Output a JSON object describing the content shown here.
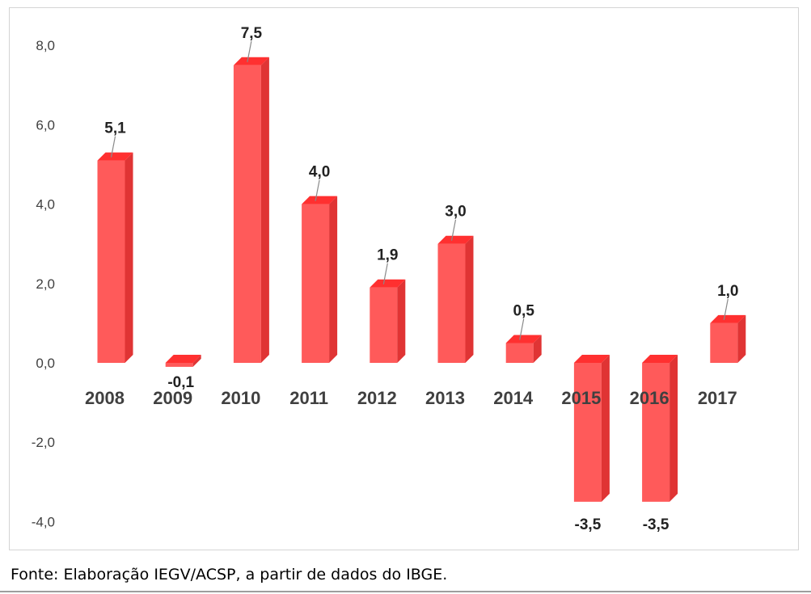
{
  "chart_data": {
    "type": "bar",
    "style": "3d-column",
    "title": "",
    "xlabel": "",
    "ylabel": "",
    "categories": [
      "2008",
      "2009",
      "2010",
      "2011",
      "2012",
      "2013",
      "2014",
      "2015",
      "2016",
      "2017"
    ],
    "values": [
      5.1,
      -0.1,
      7.5,
      4.0,
      1.9,
      3.0,
      0.5,
      -3.5,
      -3.5,
      1.0
    ],
    "data_labels": [
      "5,1",
      "-0,1",
      "7,5",
      "4,0",
      "1,9",
      "3,0",
      "0,5",
      "-3,5",
      "-3,5",
      "1,0"
    ],
    "y_ticks": [
      8,
      6,
      4,
      2,
      0,
      -2,
      -4
    ],
    "y_tick_labels": [
      "8,0",
      "6,0",
      "4,0",
      "2,0",
      "0,0",
      "-2,0",
      "-4,0"
    ],
    "ylim": [
      -4,
      8
    ],
    "grid": false,
    "legend": "none",
    "colors": {
      "bar_front": "#ff5a5a",
      "bar_side": "#e03434",
      "bar_top": "#ff3030",
      "tick_text": "#404040",
      "category_text": "#404040",
      "label_text": "#222222",
      "leader_line": "#8a8a8a"
    }
  },
  "footer": {
    "source": "Fonte: Elaboração IEGV/ACSP, a partir de dados do IBGE."
  }
}
